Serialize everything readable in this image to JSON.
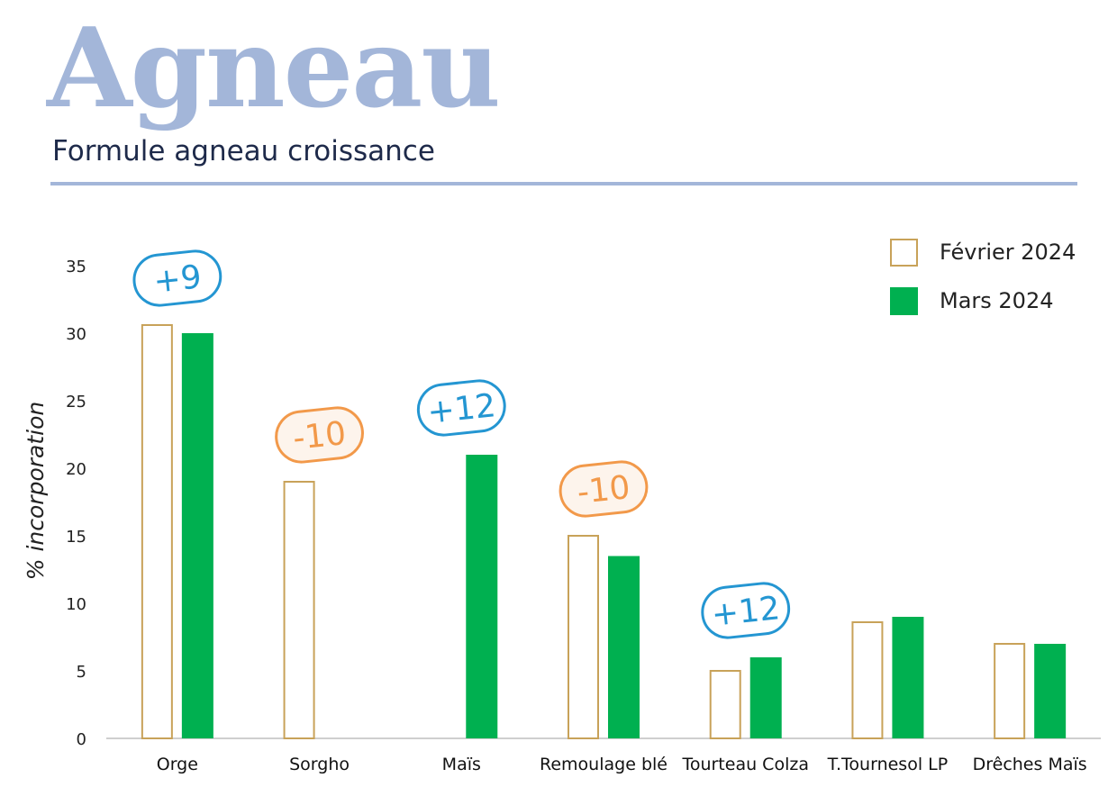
{
  "header": {
    "title": "Agneau",
    "subtitle": "Formule agneau croissance"
  },
  "colors": {
    "title": "#a3b6d9",
    "fevrier_border": "#c8a259",
    "mars_fill": "#00b050",
    "badge_plus": "#2496d2",
    "badge_minus": "#f2994a"
  },
  "chart_data": {
    "type": "bar",
    "ylabel": "% incorporation",
    "ylim": [
      0,
      35
    ],
    "yticks": [
      0,
      5,
      10,
      15,
      20,
      25,
      30,
      35
    ],
    "categories": [
      "Orge",
      "Sorgho",
      "Maïs",
      "Remoulage blé",
      "Tourteau Colza",
      "T.Tournesol LP",
      "Drêches Maïs"
    ],
    "series": [
      {
        "name": "Février 2024",
        "values": [
          30.6,
          19,
          0,
          15,
          5,
          8.6,
          7
        ]
      },
      {
        "name": "Mars 2024",
        "values": [
          30,
          0,
          21,
          13.5,
          6,
          9,
          7
        ]
      }
    ],
    "annotations": [
      {
        "category": "Orge",
        "text": "+9",
        "kind": "plus"
      },
      {
        "category": "Sorgho",
        "text": "-10",
        "kind": "minus"
      },
      {
        "category": "Maïs",
        "text": "+12",
        "kind": "plus"
      },
      {
        "category": "Remoulage blé",
        "text": "-10",
        "kind": "minus"
      },
      {
        "category": "Tourteau Colza",
        "text": "+12",
        "kind": "plus"
      }
    ],
    "legend": "top-right",
    "grid": false
  }
}
